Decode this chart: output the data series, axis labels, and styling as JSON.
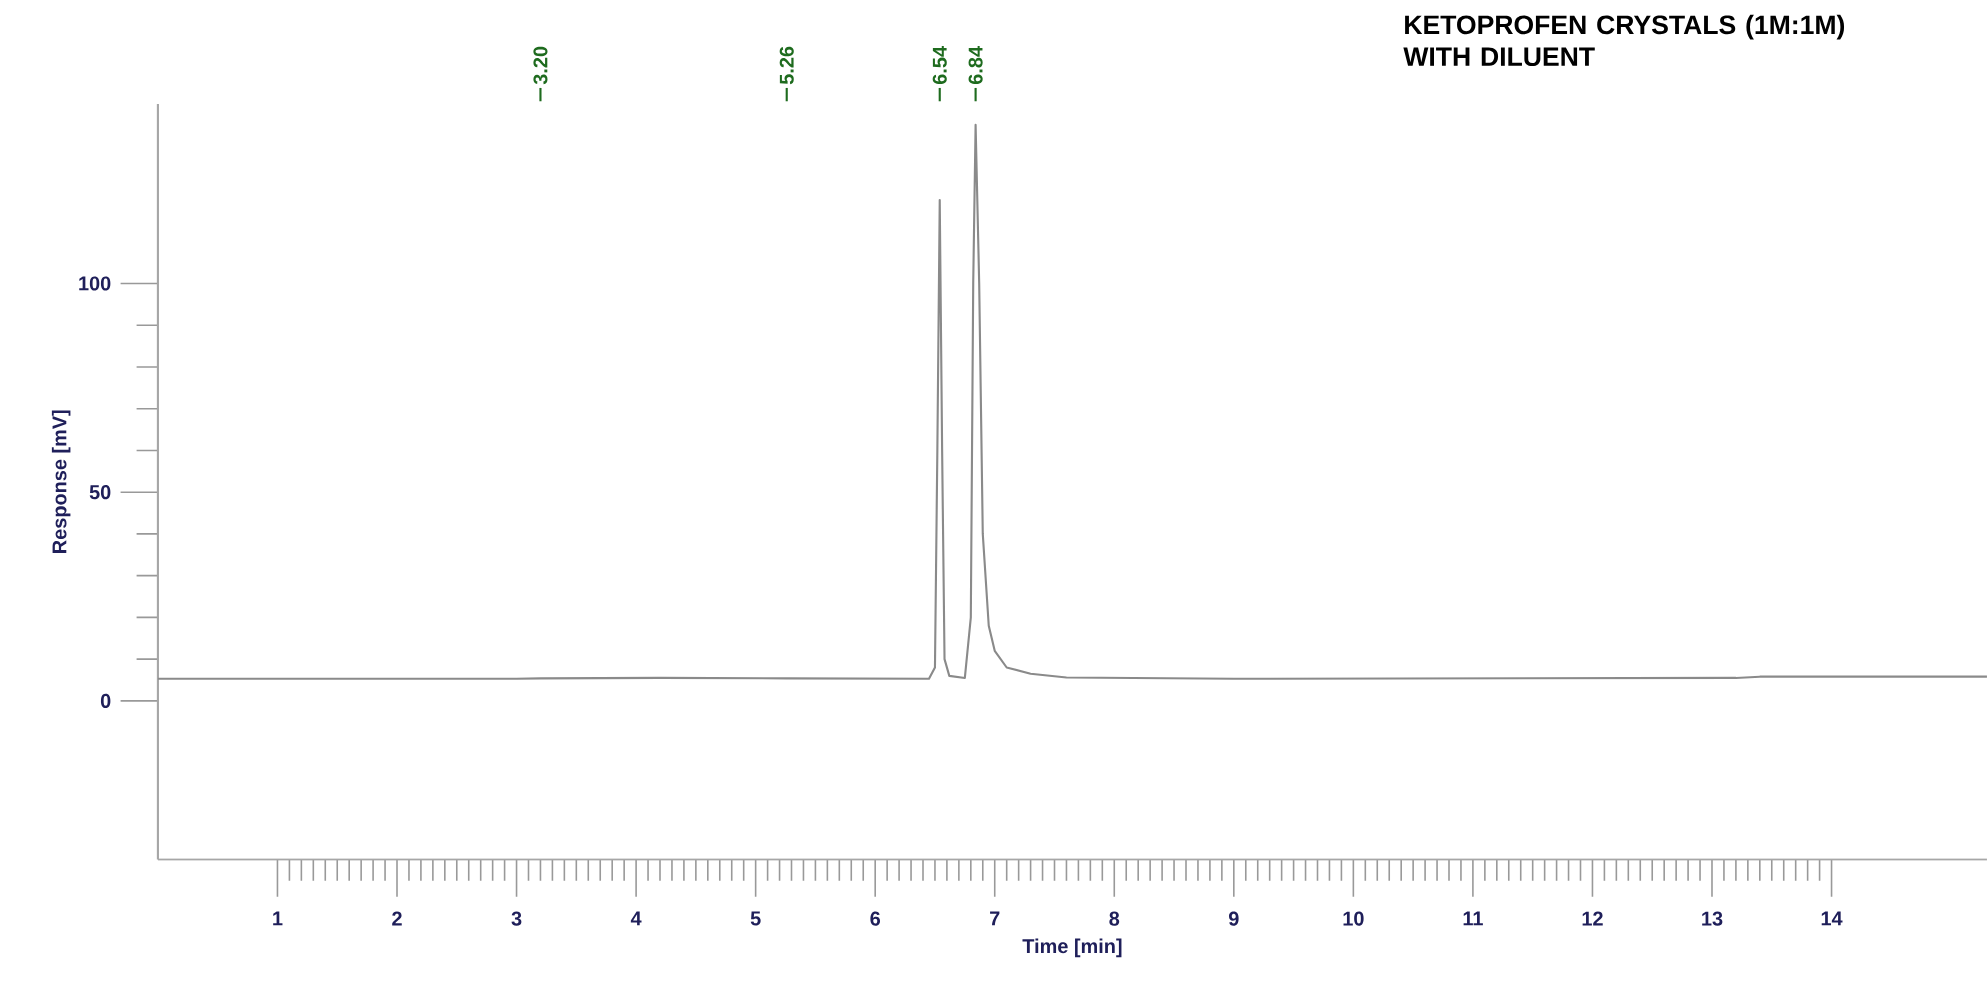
{
  "chart_data": {
    "type": "line",
    "title": "KETOPROFEN CRYSTALS (1M:1M) WITH DILUENT",
    "xlabel": "Time [min]",
    "ylabel": "Response [mV]",
    "xlim": [
      0,
      15.3
    ],
    "ylim": [
      -38,
      143
    ],
    "xticks": [
      1,
      2,
      3,
      4,
      5,
      6,
      7,
      8,
      9,
      10,
      11,
      12,
      13,
      14
    ],
    "yticks": [
      0,
      50,
      100
    ],
    "grid": false,
    "marker": "none",
    "line_style": "solid",
    "ref_lines": [
      {
        "axis": "x",
        "value": 3.2,
        "label": "3.20",
        "color": "#1e6b1e"
      },
      {
        "axis": "x",
        "value": 5.26,
        "label": "5.26",
        "color": "#1e6b1e"
      },
      {
        "axis": "x",
        "value": 6.54,
        "label": "6.54",
        "color": "#1e6b1e"
      },
      {
        "axis": "x",
        "value": 6.84,
        "label": "6.84",
        "color": "#1e6b1e"
      }
    ],
    "series": [
      {
        "color": "#8a8a8a",
        "x": [
          0,
          3.0,
          3.2,
          4.2,
          5.26,
          6.45,
          6.5,
          6.52,
          6.54,
          6.56,
          6.58,
          6.62,
          6.75,
          6.8,
          6.82,
          6.84,
          6.87,
          6.9,
          6.95,
          7.0,
          7.1,
          7.3,
          7.6,
          9,
          13.2,
          13.4,
          15.3
        ],
        "values": [
          5.3,
          5.3,
          5.4,
          5.5,
          5.4,
          5.3,
          8,
          60,
          120,
          60,
          10,
          6,
          5.5,
          20,
          100,
          138,
          100,
          40,
          18,
          12,
          8,
          6.5,
          5.6,
          5.3,
          5.5,
          5.8,
          5.8
        ]
      }
    ]
  }
}
